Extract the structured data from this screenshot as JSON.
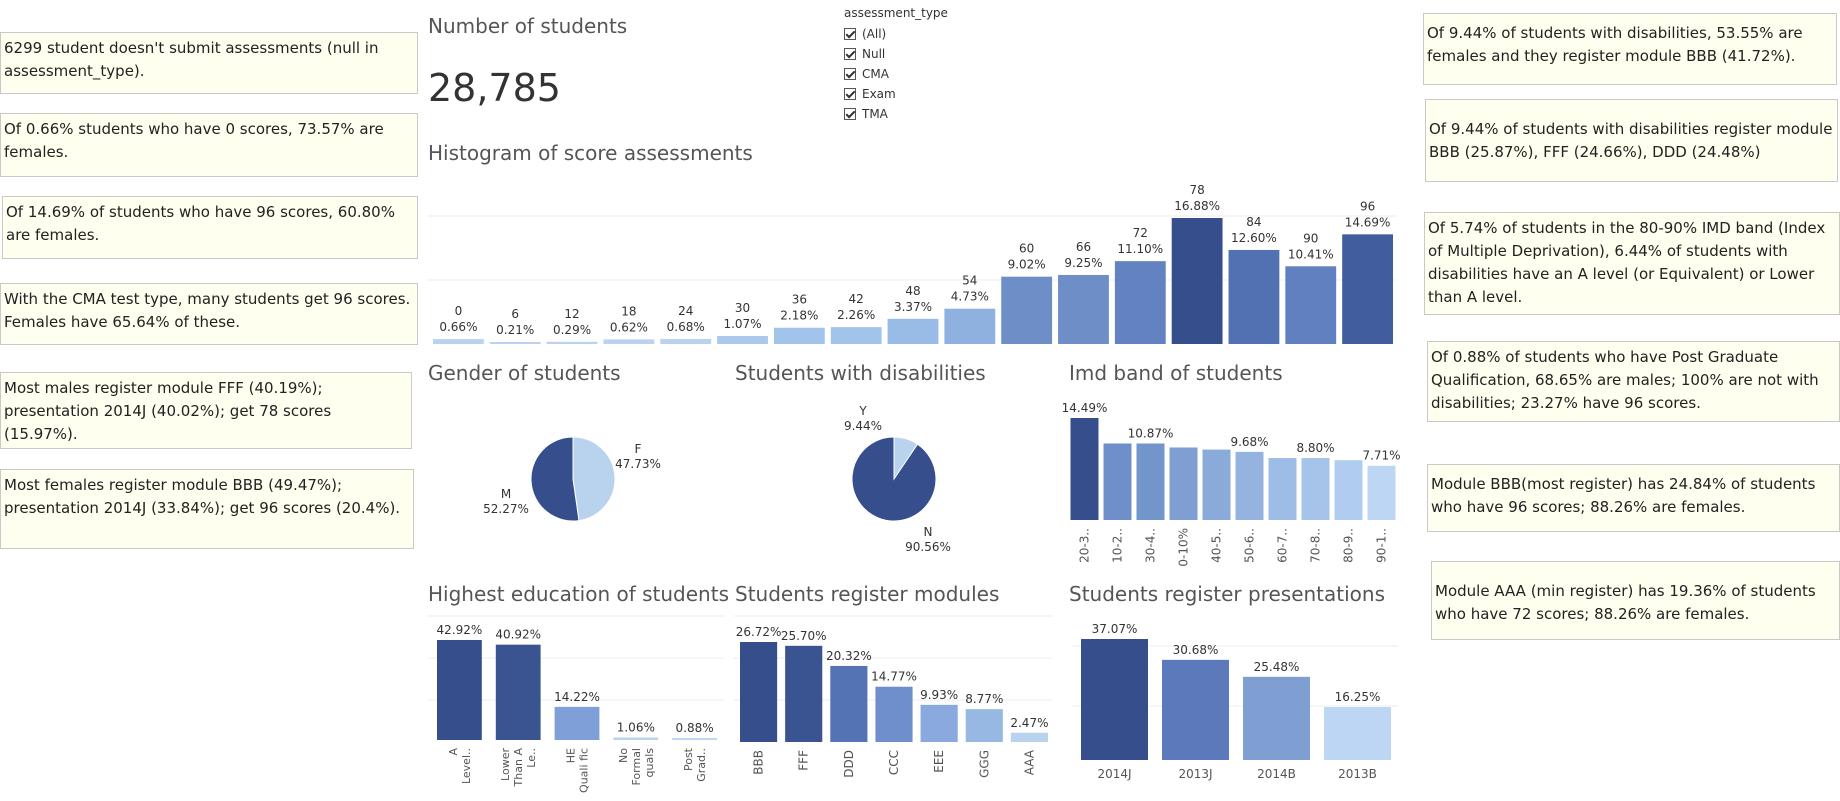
{
  "notes": {
    "left": [
      "6299 student doesn't submit assessments (null in assessment_type).",
      "Of 0.66% students who have 0 scores, 73.57% are females.",
      "Of 14.69% of students who have 96 scores, 60.80% are females.",
      "With the CMA test type, many students get 96 scores. Females have 65.64% of these.",
      "Most males register module FFF (40.19%); presentation 2014J (40.02%); get 78 scores (15.97%).",
      "Most females register module BBB (49.47%); presentation 2014J (33.84%); get 96 scores (20.4%)."
    ],
    "right": [
      "Of 9.44% of students with disabilities, 53.55% are females and they register module BBB (41.72%).",
      "Of 9.44% of students with disabilities register module BBB (25.87%), FFF (24.66%), DDD (24.48%)",
      "Of 5.74% of students in the 80-90% IMD band (Index of Multiple Deprivation), 6.44% of students with disabilities have an A level (or Equivalent) or Lower than A level.",
      "Of 0.88% of students who have Post Graduate Qualification, 68.65% are males; 100% are not with disabilities; 23.27% have 96 scores.",
      "Module BBB(most register) has 24.84% of students who have 96 scores; 88.26% are females.",
      "Module AAA (min register) has 19.36% of students who have 72 scores; 88.26% are females."
    ]
  },
  "kpi": {
    "title": "Number of students",
    "value": "28,785"
  },
  "filter": {
    "title": "assessment_type",
    "options": [
      "(All)",
      "Null",
      "CMA",
      "Exam",
      "TMA"
    ]
  },
  "titles": {
    "histogram": "Histogram of score assessments",
    "gender": "Gender of students",
    "disabilities": "Students with disabilities",
    "imd": "Imd band of students",
    "education": "Highest education of students",
    "modules": "Students register modules",
    "presentations": "Students register presentations"
  },
  "chart_data": [
    {
      "id": "histogram",
      "type": "bar",
      "title": "Histogram of score assessments",
      "categories": [
        "0",
        "6",
        "12",
        "18",
        "24",
        "30",
        "36",
        "42",
        "48",
        "54",
        "60",
        "66",
        "72",
        "78",
        "84",
        "90",
        "96"
      ],
      "values": [
        0.66,
        0.21,
        0.29,
        0.62,
        0.68,
        1.07,
        2.18,
        2.26,
        3.37,
        4.73,
        9.02,
        9.25,
        11.1,
        16.88,
        12.6,
        10.41,
        14.69
      ],
      "labels": [
        "0.66%",
        "0.21%",
        "0.29%",
        "0.62%",
        "0.68%",
        "1.07%",
        "2.18%",
        "2.26%",
        "3.37%",
        "4.73%",
        "9.02%",
        "9.25%",
        "11.10%",
        "16.88%",
        "12.60%",
        "10.41%",
        "14.69%"
      ],
      "colors": [
        "#b9d3ef",
        "#b9d3ef",
        "#b9d3ef",
        "#b9d3ef",
        "#b9d3ef",
        "#aac9ec",
        "#a2c3ea",
        "#a2c3ea",
        "#98bce6",
        "#8eb1e0",
        "#6e8ec8",
        "#6e8ec8",
        "#6282c1",
        "#364e8b",
        "#5271b2",
        "#6080c0",
        "#415d9e"
      ]
    },
    {
      "id": "gender",
      "type": "pie",
      "title": "Gender of students",
      "slices": [
        {
          "name": "F",
          "value": 47.73,
          "label": "47.73%",
          "color": "#b9d3ef"
        },
        {
          "name": "M",
          "value": 52.27,
          "label": "52.27%",
          "color": "#364e8b"
        }
      ]
    },
    {
      "id": "disabilities",
      "type": "pie",
      "title": "Students with disabilities",
      "slices": [
        {
          "name": "Y",
          "value": 9.44,
          "label": "9.44%",
          "color": "#b9d3ef"
        },
        {
          "name": "N",
          "value": 90.56,
          "label": "90.56%",
          "color": "#364e8b"
        }
      ]
    },
    {
      "id": "imd",
      "type": "bar",
      "title": "Imd band of students",
      "categories": [
        "20-3..",
        "10-2..",
        "30-4..",
        "0-10%",
        "40-5..",
        "50-6..",
        "60-7..",
        "70-8..",
        "80-9..",
        "90-1.."
      ],
      "values": [
        14.49,
        10.87,
        10.87,
        10.3,
        10.0,
        9.68,
        8.8,
        8.8,
        8.5,
        7.71
      ],
      "labels": [
        "14.49%",
        "",
        "10.87%",
        "",
        "",
        "9.68%",
        "",
        "8.80%",
        "",
        "7.71%"
      ],
      "colors": [
        "#364e8b",
        "#6f8fcb",
        "#7295cc",
        "#7f9fd3",
        "#8aaad9",
        "#94b4df",
        "#9dbde6",
        "#a6c4ea",
        "#b0ccef",
        "#bcd6f3"
      ]
    },
    {
      "id": "education",
      "type": "bar",
      "title": "Highest education of students",
      "categories": [
        "A Level..",
        "Lower Than A Le..",
        "HE Quali fic..",
        "No Formal quals",
        "Post Grad.."
      ],
      "tick_lines": [
        [
          "A",
          "Level.."
        ],
        [
          "Lower",
          "Than A",
          "Le.."
        ],
        [
          "HE",
          "Quali fic"
        ],
        [
          "No",
          "Formal",
          "quals"
        ],
        [
          "Post",
          "Grad.."
        ]
      ],
      "values": [
        42.92,
        40.92,
        14.22,
        1.06,
        0.88
      ],
      "labels": [
        "42.92%",
        "40.92%",
        "14.22%",
        "1.06%",
        "0.88%"
      ],
      "colors": [
        "#364e8b",
        "#3a5391",
        "#7f9fd8",
        "#b9d3ef",
        "#bcd6f3"
      ]
    },
    {
      "id": "modules",
      "type": "bar",
      "title": "Students register modules",
      "categories": [
        "BBB",
        "FFF",
        "DDD",
        "CCC",
        "EEE",
        "GGG",
        "AAA"
      ],
      "values": [
        26.72,
        25.7,
        20.32,
        14.77,
        9.93,
        8.77,
        2.47
      ],
      "labels": [
        "26.72%",
        "25.70%",
        "20.32%",
        "14.77%",
        "9.93%",
        "8.77%",
        "2.47%"
      ],
      "colors": [
        "#364e8b",
        "#3a5391",
        "#5373b4",
        "#6e8fcc",
        "#8aaadf",
        "#98b8e4",
        "#b9d3ef"
      ]
    },
    {
      "id": "presentations",
      "type": "bar",
      "title": "Students register presentations",
      "categories": [
        "2014J",
        "2013J",
        "2014B",
        "2013B"
      ],
      "values": [
        37.07,
        30.68,
        25.48,
        16.25
      ],
      "labels": [
        "37.07%",
        "30.68%",
        "25.48%",
        "16.25%"
      ],
      "colors": [
        "#364e8b",
        "#5b79bb",
        "#7f9fd3",
        "#bcd6f3"
      ]
    }
  ]
}
